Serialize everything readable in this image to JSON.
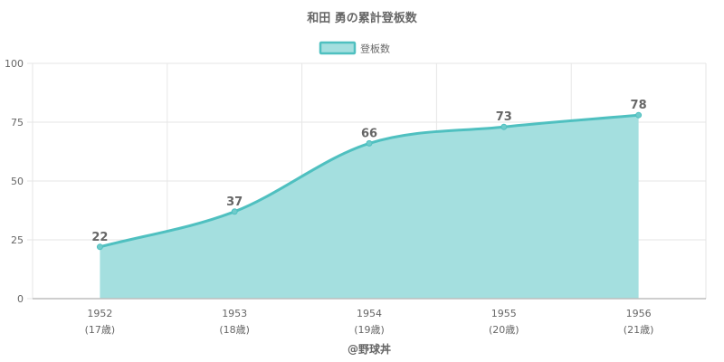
{
  "chart_data": {
    "type": "area",
    "title": "和田 勇の累計登板数",
    "categories": [
      "1952",
      "1953",
      "1954",
      "1955",
      "1956"
    ],
    "category_sublabels": [
      "(17歳)",
      "(18歳)",
      "(19歳)",
      "(20歳)",
      "(21歳)"
    ],
    "series": [
      {
        "name": "登板数",
        "values": [
          22,
          37,
          66,
          73,
          78
        ]
      }
    ],
    "ylim": [
      0,
      100
    ],
    "yticks": [
      0,
      25,
      50,
      75,
      100
    ],
    "grid": true,
    "legend_position": "top",
    "colors": {
      "line": "#4fc0c0",
      "fill": "#a4dfdf",
      "point": "#6fcbcb"
    },
    "footer": "@野球丼"
  }
}
